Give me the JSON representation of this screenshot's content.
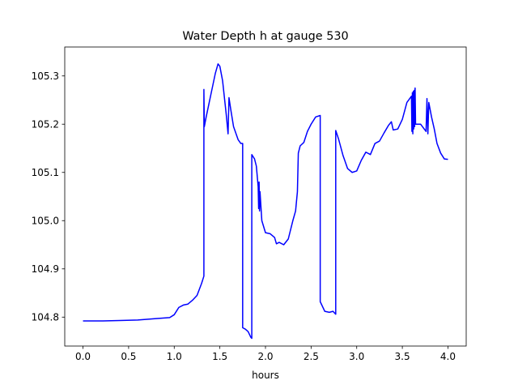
{
  "chart_data": {
    "type": "line",
    "title": "Water Depth h at gauge 530",
    "xlabel": "hours",
    "ylabel": "",
    "xlim": [
      -0.2,
      4.2
    ],
    "ylim": [
      104.74,
      105.36
    ],
    "grid": false,
    "x_ticks": [
      0.0,
      0.5,
      1.0,
      1.5,
      2.0,
      2.5,
      3.0,
      3.5,
      4.0
    ],
    "x_tick_labels": [
      "0.0",
      "0.5",
      "1.0",
      "1.5",
      "2.0",
      "2.5",
      "3.0",
      "3.5",
      "4.0"
    ],
    "y_ticks": [
      104.8,
      104.9,
      105.0,
      105.1,
      105.2,
      105.3
    ],
    "y_tick_labels": [
      "104.8",
      "104.9",
      "105.0",
      "105.1",
      "105.2",
      "105.3"
    ],
    "series": [
      {
        "color": "#0000ff",
        "points": [
          [
            0.0,
            104.792
          ],
          [
            0.2,
            104.792
          ],
          [
            0.4,
            104.793
          ],
          [
            0.6,
            104.794
          ],
          [
            0.8,
            104.797
          ],
          [
            0.95,
            104.799
          ],
          [
            1.0,
            104.805
          ],
          [
            1.05,
            104.82
          ],
          [
            1.1,
            104.825
          ],
          [
            1.15,
            104.827
          ],
          [
            1.2,
            104.835
          ],
          [
            1.25,
            104.845
          ],
          [
            1.3,
            104.87
          ],
          [
            1.325,
            104.885
          ],
          [
            1.325,
            105.272
          ],
          [
            1.33,
            105.195
          ],
          [
            1.35,
            105.215
          ],
          [
            1.4,
            105.26
          ],
          [
            1.45,
            105.305
          ],
          [
            1.48,
            105.325
          ],
          [
            1.5,
            105.32
          ],
          [
            1.53,
            105.29
          ],
          [
            1.57,
            105.22
          ],
          [
            1.59,
            105.18
          ],
          [
            1.6,
            105.255
          ],
          [
            1.62,
            105.23
          ],
          [
            1.65,
            105.195
          ],
          [
            1.7,
            105.168
          ],
          [
            1.73,
            105.16
          ],
          [
            1.75,
            105.16
          ],
          [
            1.75,
            104.778
          ],
          [
            1.78,
            104.775
          ],
          [
            1.81,
            104.77
          ],
          [
            1.84,
            104.758
          ],
          [
            1.85,
            104.756
          ],
          [
            1.85,
            105.137
          ],
          [
            1.88,
            105.128
          ],
          [
            1.9,
            105.113
          ],
          [
            1.92,
            105.07
          ],
          [
            1.925,
            105.025
          ],
          [
            1.93,
            105.08
          ],
          [
            1.935,
            105.02
          ],
          [
            1.94,
            105.06
          ],
          [
            1.96,
            105.0
          ],
          [
            2.0,
            104.975
          ],
          [
            2.05,
            104.973
          ],
          [
            2.1,
            104.965
          ],
          [
            2.12,
            104.952
          ],
          [
            2.15,
            104.955
          ],
          [
            2.2,
            104.95
          ],
          [
            2.25,
            104.962
          ],
          [
            2.3,
            105.0
          ],
          [
            2.33,
            105.02
          ],
          [
            2.35,
            105.06
          ],
          [
            2.36,
            105.14
          ],
          [
            2.38,
            105.155
          ],
          [
            2.42,
            105.162
          ],
          [
            2.46,
            105.185
          ],
          [
            2.5,
            105.2
          ],
          [
            2.55,
            105.215
          ],
          [
            2.6,
            105.218
          ],
          [
            2.6,
            104.832
          ],
          [
            2.65,
            104.812
          ],
          [
            2.7,
            104.81
          ],
          [
            2.74,
            104.812
          ],
          [
            2.77,
            104.806
          ],
          [
            2.77,
            105.187
          ],
          [
            2.8,
            105.17
          ],
          [
            2.85,
            105.135
          ],
          [
            2.9,
            105.108
          ],
          [
            2.95,
            105.1
          ],
          [
            3.0,
            105.103
          ],
          [
            3.05,
            105.125
          ],
          [
            3.1,
            105.142
          ],
          [
            3.15,
            105.137
          ],
          [
            3.2,
            105.16
          ],
          [
            3.25,
            105.165
          ],
          [
            3.3,
            105.182
          ],
          [
            3.35,
            105.198
          ],
          [
            3.38,
            105.205
          ],
          [
            3.4,
            105.188
          ],
          [
            3.45,
            105.19
          ],
          [
            3.5,
            105.21
          ],
          [
            3.55,
            105.245
          ],
          [
            3.6,
            105.258
          ],
          [
            3.605,
            105.185
          ],
          [
            3.61,
            105.265
          ],
          [
            3.615,
            105.18
          ],
          [
            3.62,
            105.268
          ],
          [
            3.625,
            105.19
          ],
          [
            3.63,
            105.27
          ],
          [
            3.635,
            105.195
          ],
          [
            3.64,
            105.275
          ],
          [
            3.645,
            105.2
          ],
          [
            3.7,
            105.2
          ],
          [
            3.76,
            105.185
          ],
          [
            3.77,
            105.253
          ],
          [
            3.78,
            105.18
          ],
          [
            3.79,
            105.245
          ],
          [
            3.82,
            105.215
          ],
          [
            3.85,
            105.19
          ],
          [
            3.88,
            105.16
          ],
          [
            3.92,
            105.14
          ],
          [
            3.96,
            105.128
          ],
          [
            4.0,
            105.127
          ]
        ]
      }
    ]
  }
}
